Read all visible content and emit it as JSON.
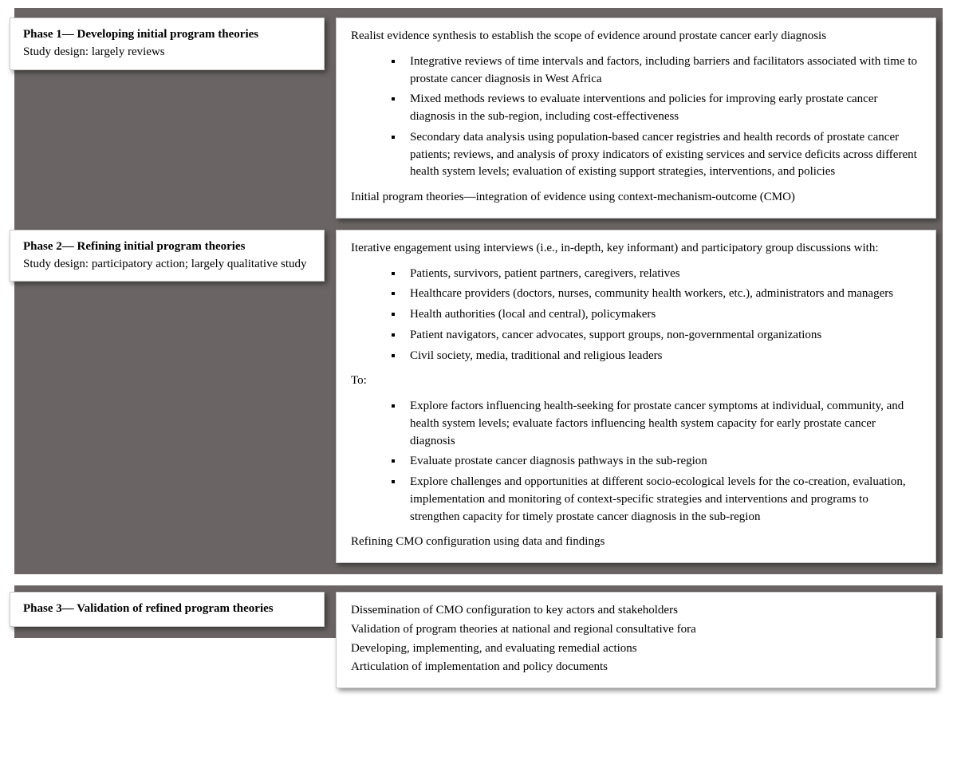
{
  "phase1": {
    "title": "Phase 1— Developing initial program theories",
    "subtitle": "Study design: largely reviews",
    "intro": "Realist evidence synthesis to establish the scope of evidence around prostate cancer early diagnosis",
    "bullets": [
      "Integrative reviews of time intervals and factors, including barriers and facilitators associated with time to prostate cancer diagnosis in West Africa",
      "Mixed methods reviews to evaluate interventions and policies for improving early prostate cancer diagnosis in the sub-region, including cost-effectiveness",
      "Secondary data analysis using population-based cancer registries and health records of prostate cancer patients; reviews, and analysis of proxy indicators of existing services and service deficits across different health system levels; evaluation of existing support strategies, interventions, and policies"
    ],
    "outro": "Initial program theories—integration of evidence using context-mechanism-outcome (CMO)"
  },
  "phase2": {
    "title": "Phase 2— Refining initial program theories",
    "subtitle": "Study design: participatory action; largely qualitative study",
    "intro": "Iterative engagement using interviews (i.e., in-depth, key informant) and participatory group discussions with:",
    "bullets_with": [
      "Patients, survivors, patient partners, caregivers, relatives",
      "Healthcare providers (doctors, nurses, community health workers, etc.), administrators and managers",
      "Health authorities (local and central), policymakers",
      "Patient navigators, cancer advocates, support groups, non-governmental organizations",
      "Civil society, media, traditional and religious leaders"
    ],
    "to_label": "To:",
    "bullets_to": [
      "Explore factors influencing health-seeking for prostate cancer symptoms at individual, community, and health system levels; evaluate factors influencing health system capacity for early prostate cancer diagnosis",
      "Evaluate prostate cancer diagnosis pathways in the sub-region",
      "Explore challenges and opportunities at different socio-ecological levels for the co-creation, evaluation, implementation and monitoring of context-specific strategies and interventions and programs to strengthen capacity for timely prostate cancer diagnosis in the sub-region"
    ],
    "outro": "Refining CMO configuration using data and findings"
  },
  "phase3": {
    "title": "Phase 3— Validation of refined program theories",
    "lines": [
      "Dissemination of CMO configuration to key actors and stakeholders",
      "Validation of program theories at national and regional consultative fora",
      "Developing, implementing, and evaluating remedial actions",
      "Articulation of implementation and policy documents"
    ]
  },
  "colors": {
    "panel_bg": "#6a6564",
    "card_bg": "#ffffff",
    "border": "#c9c9c9",
    "text": "#000000"
  }
}
